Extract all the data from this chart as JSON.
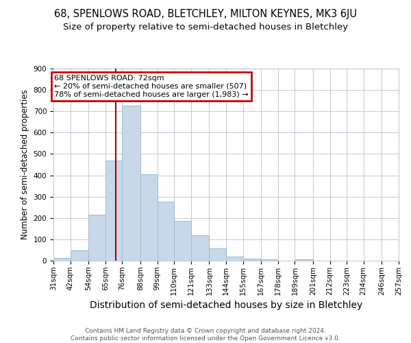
{
  "title1": "68, SPENLOWS ROAD, BLETCHLEY, MILTON KEYNES, MK3 6JU",
  "title2": "Size of property relative to semi-detached houses in Bletchley",
  "xlabel": "Distribution of semi-detached houses by size in Bletchley",
  "ylabel": "Number of semi-detached properties",
  "bin_edges": [
    31,
    42,
    54,
    65,
    76,
    88,
    99,
    110,
    121,
    133,
    144,
    155,
    167,
    178,
    189,
    201,
    212,
    223,
    234,
    246,
    257
  ],
  "bar_heights": [
    12,
    48,
    216,
    470,
    725,
    404,
    275,
    185,
    118,
    57,
    19,
    9,
    5,
    0,
    8,
    0,
    0,
    0,
    0,
    0
  ],
  "bar_color": "#c8d8e8",
  "bar_edgecolor": "#a0b8d0",
  "property_size": 72,
  "red_line_color": "#aa0000",
  "annotation_text": "68 SPENLOWS ROAD: 72sqm\n← 20% of semi-detached houses are smaller (507)\n78% of semi-detached houses are larger (1,983) →",
  "annotation_box_color": "#ffffff",
  "annotation_box_edgecolor": "#cc0000",
  "footer": "Contains HM Land Registry data © Crown copyright and database right 2024.\nContains public sector information licensed under the Open Government Licence v3.0.",
  "ylim": [
    0,
    900
  ],
  "background_color": "#ffffff",
  "grid_color": "#c0c8d8",
  "title1_fontsize": 10.5,
  "title2_fontsize": 9.5,
  "xlabel_fontsize": 10,
  "ylabel_fontsize": 8.5,
  "tick_fontsize": 7.5,
  "footer_fontsize": 6.5,
  "annotation_fontsize": 8
}
